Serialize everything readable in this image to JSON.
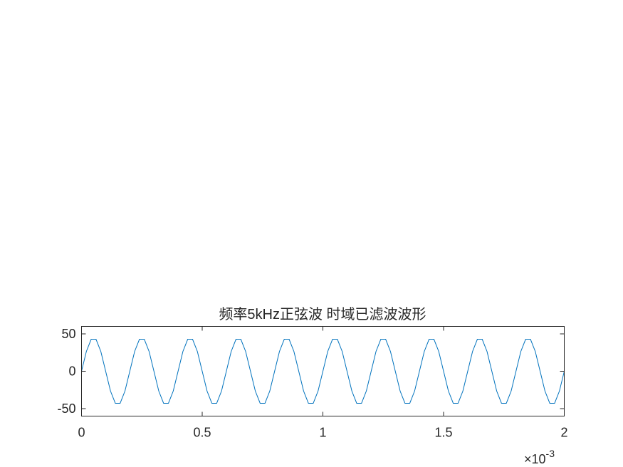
{
  "chart_data": {
    "type": "line",
    "title": "频率5kHz正弦波 时域已滤波波形",
    "xlabel": "",
    "ylabel": "",
    "xlim": [
      0,
      0.002
    ],
    "ylim": [
      -60,
      60
    ],
    "x_ticks": [
      0,
      0.0005,
      0.001,
      0.0015,
      0.002
    ],
    "x_tick_labels": [
      "0",
      "0.5",
      "1",
      "1.5",
      "2"
    ],
    "x_exponent_base": "×10",
    "x_exponent_power": "-3",
    "y_ticks": [
      -50,
      0,
      50
    ],
    "y_tick_labels": [
      "-50",
      "0",
      "50"
    ],
    "grid": false,
    "series": [
      {
        "color": "#0072bd",
        "frequency_hz": 5000,
        "amplitude": 45,
        "sample_interval": 2e-05,
        "x_start": 0,
        "x_end": 0.002
      }
    ]
  }
}
